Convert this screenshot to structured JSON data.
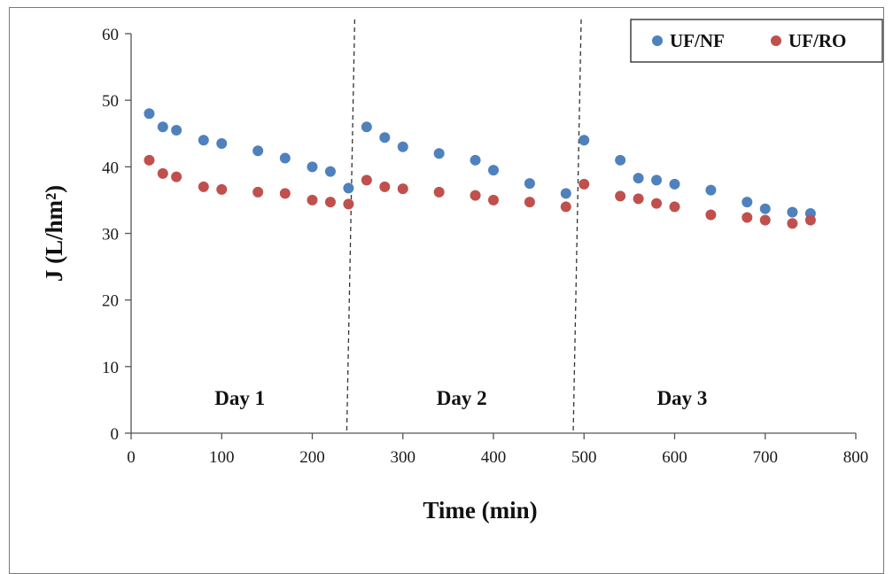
{
  "chart_data": {
    "type": "scatter",
    "title": "",
    "xlabel": "Time (min)",
    "ylabel": "J (L/hm²)",
    "xlim": [
      0,
      800
    ],
    "ylim": [
      0,
      60
    ],
    "xticks": [
      0,
      100,
      200,
      300,
      400,
      500,
      600,
      700,
      800
    ],
    "yticks": [
      0,
      10,
      20,
      30,
      40,
      50,
      60
    ],
    "grid": false,
    "legend_position": "top-right",
    "vlines": [
      240,
      490
    ],
    "annotations": [
      "Day 1",
      "Day 2",
      "Day 3"
    ],
    "series": [
      {
        "name": "UF/NF",
        "color": "#4f81bd",
        "points": [
          [
            20,
            48
          ],
          [
            35,
            46
          ],
          [
            50,
            45.5
          ],
          [
            80,
            44
          ],
          [
            100,
            43.5
          ],
          [
            140,
            42.4
          ],
          [
            170,
            41.3
          ],
          [
            200,
            40
          ],
          [
            220,
            39.3
          ],
          [
            240,
            36.8
          ],
          [
            260,
            46
          ],
          [
            280,
            44.4
          ],
          [
            300,
            43
          ],
          [
            340,
            42
          ],
          [
            380,
            41
          ],
          [
            400,
            39.5
          ],
          [
            440,
            37.5
          ],
          [
            480,
            36
          ],
          [
            500,
            44
          ],
          [
            540,
            41
          ],
          [
            560,
            38.3
          ],
          [
            580,
            38
          ],
          [
            600,
            37.4
          ],
          [
            640,
            36.5
          ],
          [
            680,
            34.7
          ],
          [
            700,
            33.7
          ],
          [
            730,
            33.2
          ],
          [
            750,
            33
          ]
        ]
      },
      {
        "name": "UF/RO",
        "color": "#c0504d",
        "points": [
          [
            20,
            41
          ],
          [
            35,
            39
          ],
          [
            50,
            38.5
          ],
          [
            80,
            37
          ],
          [
            100,
            36.6
          ],
          [
            140,
            36.2
          ],
          [
            170,
            36
          ],
          [
            200,
            35
          ],
          [
            220,
            34.7
          ],
          [
            240,
            34.4
          ],
          [
            260,
            38
          ],
          [
            280,
            37
          ],
          [
            300,
            36.7
          ],
          [
            340,
            36.2
          ],
          [
            380,
            35.7
          ],
          [
            400,
            35
          ],
          [
            440,
            34.7
          ],
          [
            480,
            34
          ],
          [
            500,
            37.4
          ],
          [
            540,
            35.6
          ],
          [
            560,
            35.2
          ],
          [
            580,
            34.5
          ],
          [
            600,
            34
          ],
          [
            640,
            32.8
          ],
          [
            680,
            32.4
          ],
          [
            700,
            32
          ],
          [
            730,
            31.5
          ],
          [
            750,
            32
          ]
        ]
      }
    ]
  }
}
